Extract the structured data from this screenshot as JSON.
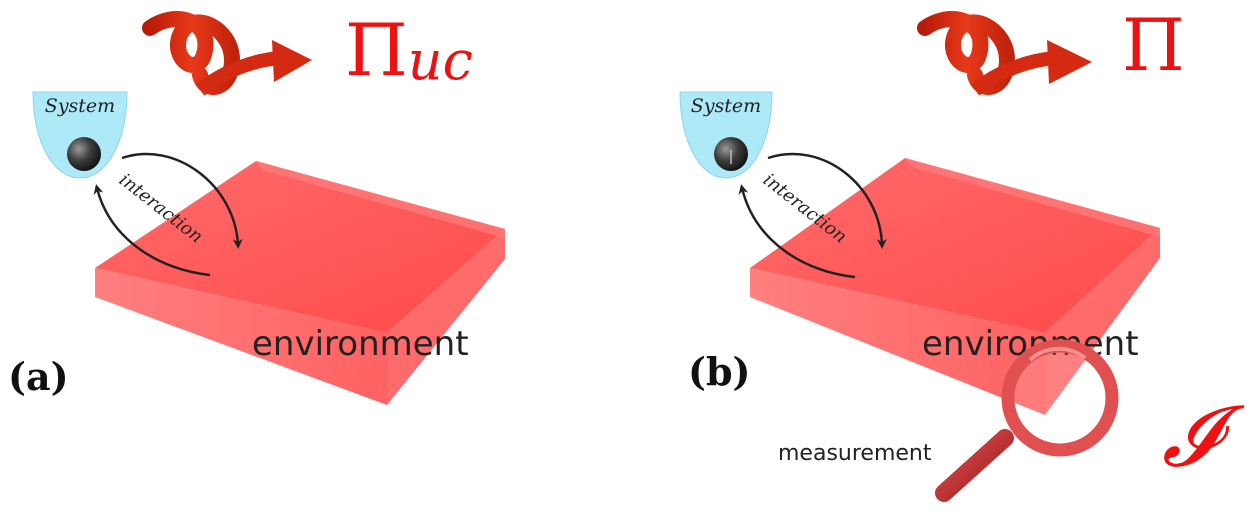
{
  "panels": [
    {
      "label": "(a)",
      "system_label": "System",
      "interaction_label": "interaction",
      "environment_label": "environment",
      "heat_flux_label": "Π",
      "heat_flux_subscript": "uc"
    },
    {
      "label": "(b)",
      "system_label": "System",
      "interaction_label": "interaction",
      "environment_label": "environment",
      "heat_flux_label": "Π",
      "measurement_label": "measurement",
      "information_symbol": "𝓘"
    }
  ],
  "colors": {
    "environment_top": "#ff5a5a",
    "environment_side": "#ff8080",
    "system_well": "#aee9f7",
    "symbol_red": "#ee1111",
    "ribbon_red": "#d92a10",
    "arrow": "#222222",
    "magnifier_ring": "#e04a4a"
  },
  "icons": {
    "heat_flux": "heat-ribbon-arrow-icon",
    "measurement": "magnifying-glass-icon",
    "particle": "particle-sphere-icon"
  }
}
